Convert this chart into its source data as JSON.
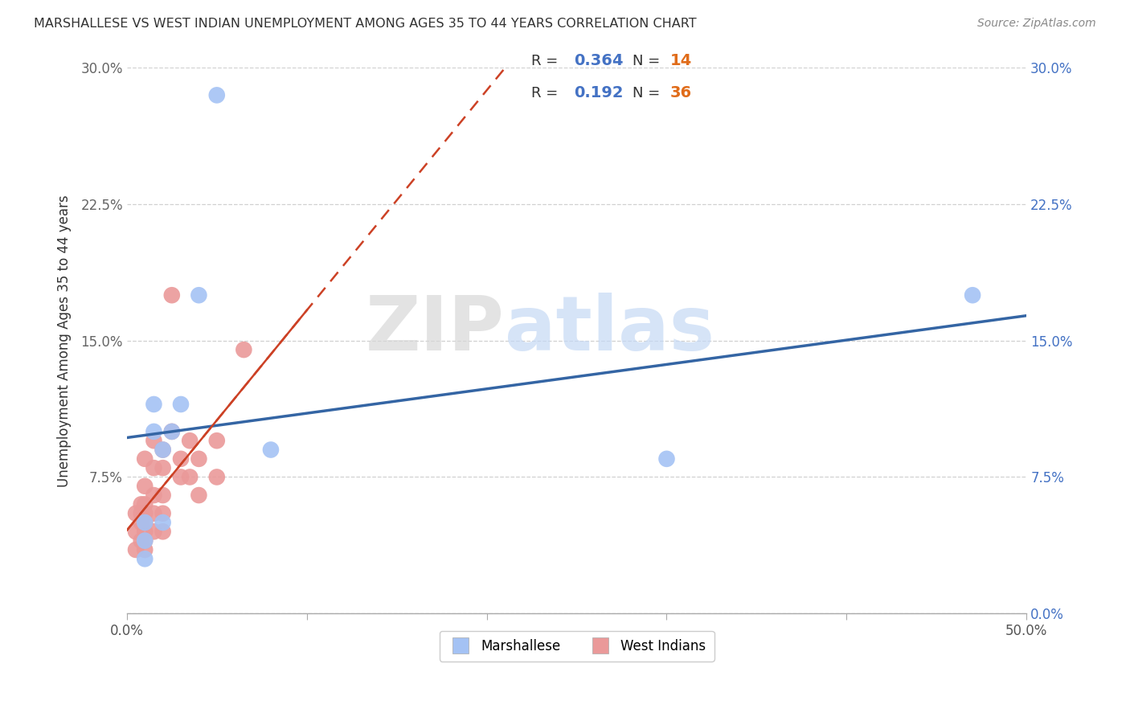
{
  "title": "MARSHALLESE VS WEST INDIAN UNEMPLOYMENT AMONG AGES 35 TO 44 YEARS CORRELATION CHART",
  "source": "Source: ZipAtlas.com",
  "ylabel": "Unemployment Among Ages 35 to 44 years",
  "xlim": [
    0.0,
    0.5
  ],
  "ylim": [
    0.0,
    0.3
  ],
  "xlabel_vals": [
    0.0,
    0.1,
    0.2,
    0.3,
    0.4,
    0.5
  ],
  "ylabel_vals": [
    0.0,
    0.075,
    0.15,
    0.225,
    0.3
  ],
  "ylabel_ticks": [
    "",
    "7.5%",
    "15.0%",
    "22.5%",
    "30.0%"
  ],
  "R_marshallese": 0.364,
  "N_marshallese": 14,
  "R_west_indian": 0.192,
  "N_west_indian": 36,
  "blue_color": "#a4c2f4",
  "pink_color": "#ea9999",
  "blue_line_color": "#3465a4",
  "pink_line_color": "#cc4125",
  "marshallese_x": [
    0.01,
    0.01,
    0.01,
    0.015,
    0.015,
    0.02,
    0.02,
    0.025,
    0.03,
    0.04,
    0.05,
    0.08,
    0.3,
    0.47
  ],
  "marshallese_y": [
    0.05,
    0.04,
    0.03,
    0.115,
    0.1,
    0.09,
    0.05,
    0.1,
    0.115,
    0.175,
    0.285,
    0.09,
    0.085,
    0.175
  ],
  "west_indian_x": [
    0.005,
    0.005,
    0.005,
    0.008,
    0.008,
    0.008,
    0.008,
    0.01,
    0.01,
    0.01,
    0.01,
    0.01,
    0.01,
    0.01,
    0.01,
    0.015,
    0.015,
    0.015,
    0.015,
    0.015,
    0.02,
    0.02,
    0.02,
    0.02,
    0.02,
    0.025,
    0.025,
    0.03,
    0.03,
    0.035,
    0.035,
    0.04,
    0.04,
    0.05,
    0.05,
    0.065
  ],
  "west_indian_y": [
    0.055,
    0.045,
    0.035,
    0.06,
    0.055,
    0.05,
    0.04,
    0.085,
    0.07,
    0.06,
    0.055,
    0.05,
    0.045,
    0.04,
    0.035,
    0.095,
    0.08,
    0.065,
    0.055,
    0.045,
    0.09,
    0.08,
    0.065,
    0.055,
    0.045,
    0.175,
    0.1,
    0.085,
    0.075,
    0.095,
    0.075,
    0.085,
    0.065,
    0.095,
    0.075,
    0.145
  ],
  "watermark_zip": "ZIP",
  "watermark_atlas": "atlas",
  "background_color": "#ffffff",
  "grid_color": "#d0d0d0"
}
